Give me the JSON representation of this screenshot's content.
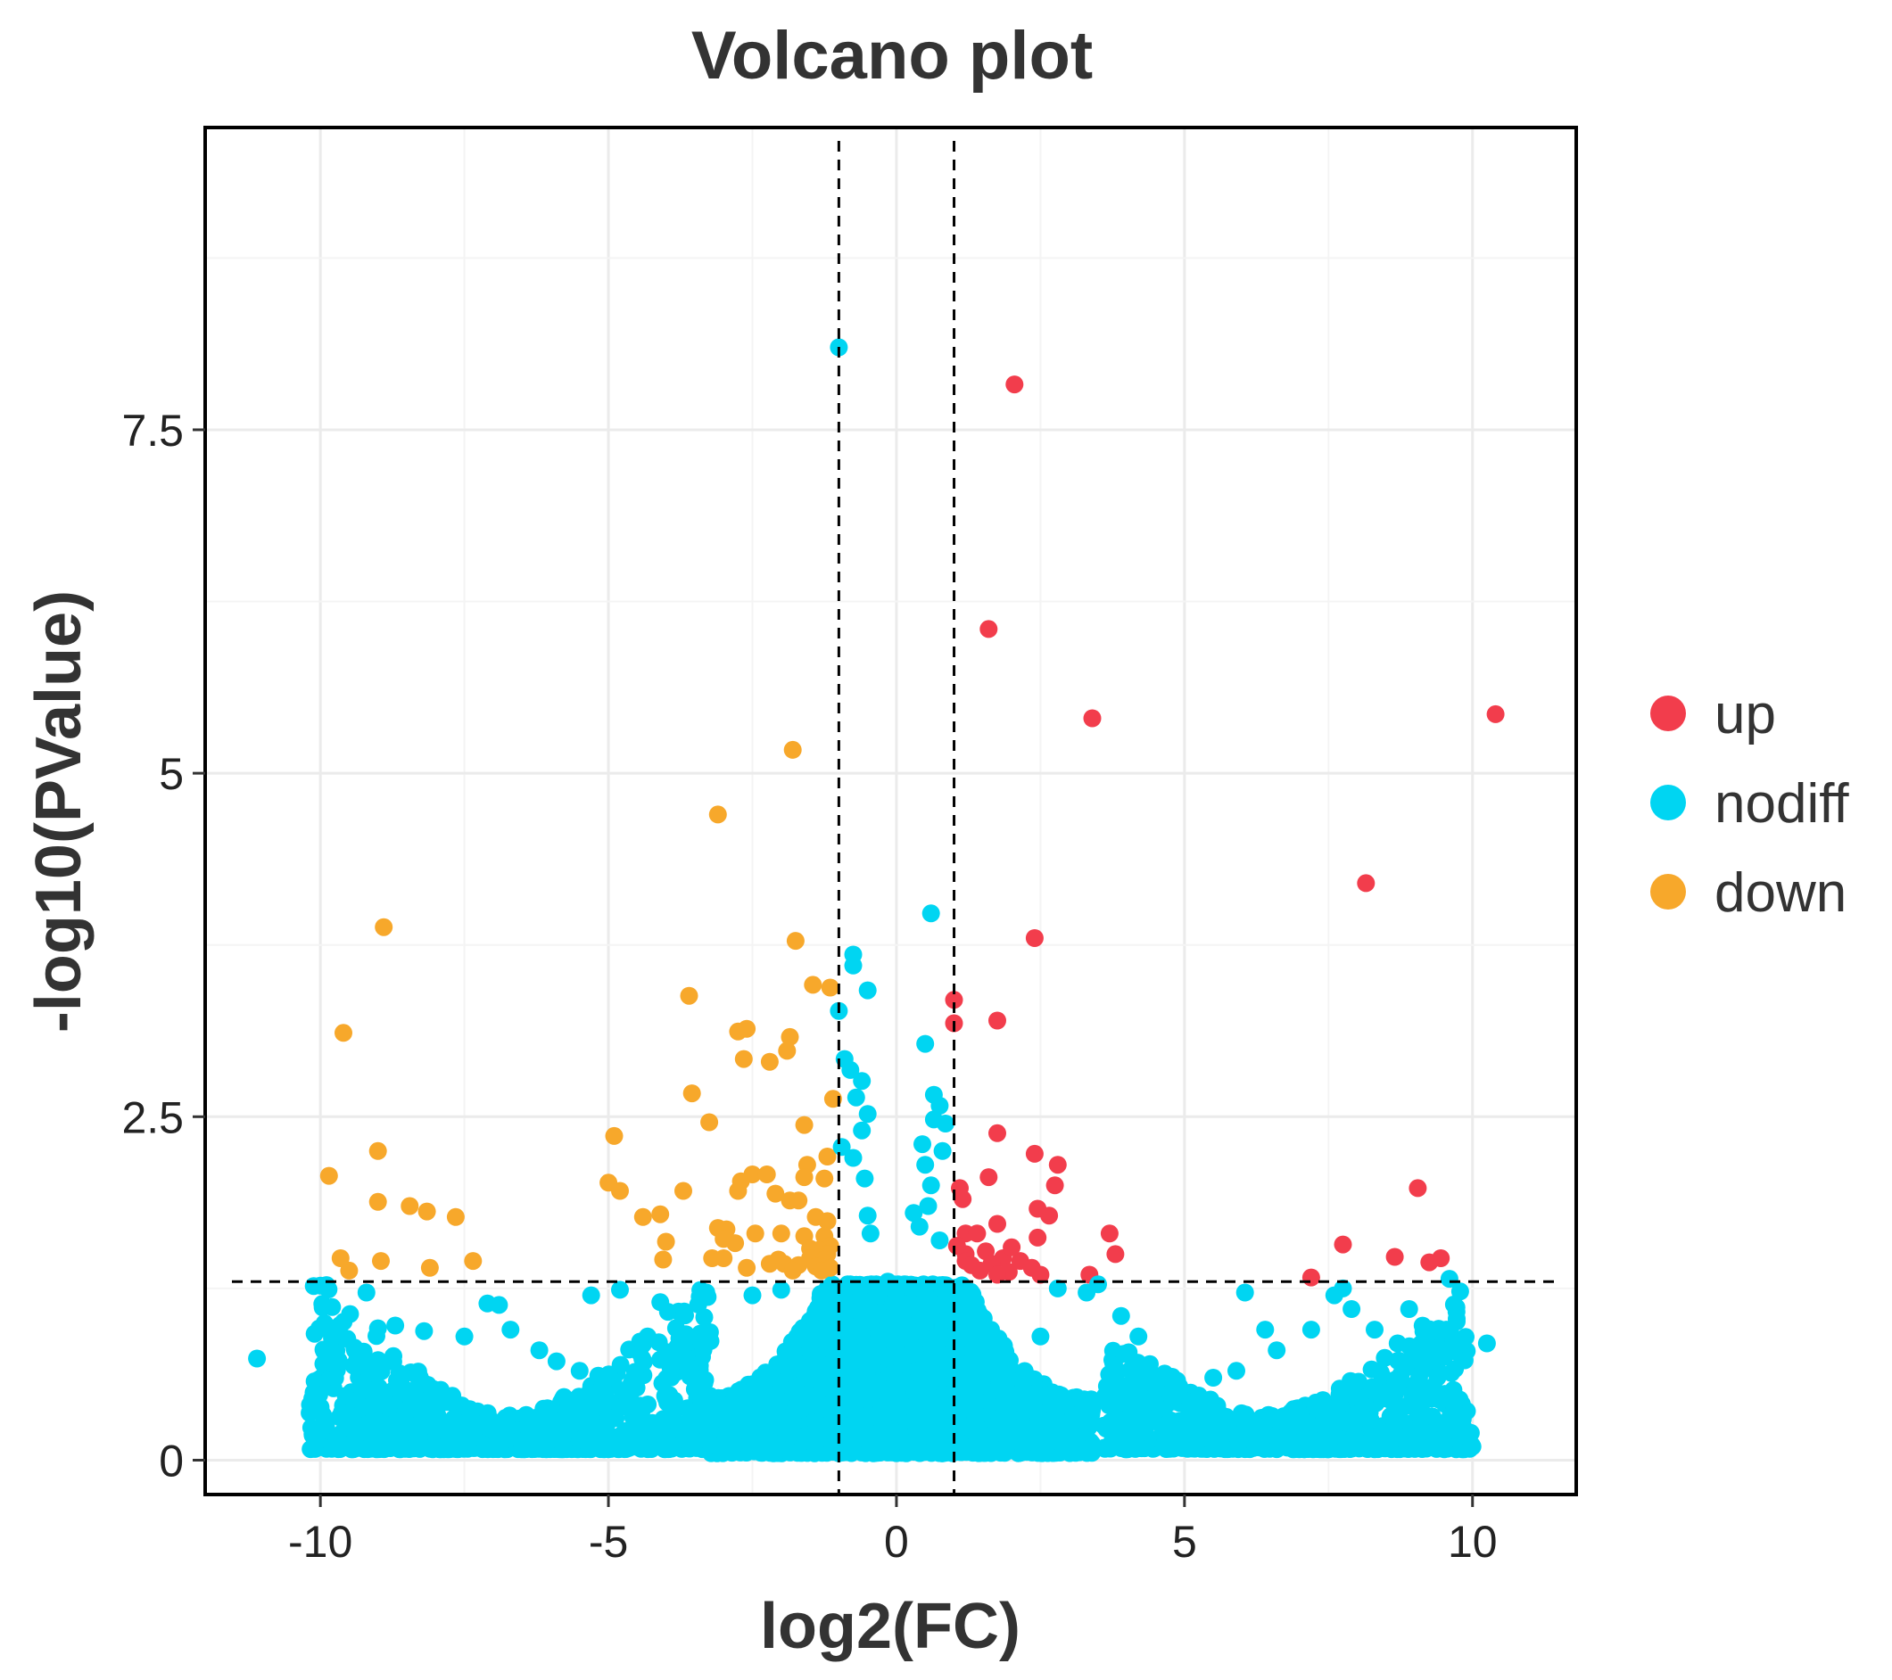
{
  "chart_data": {
    "type": "scatter",
    "title": "Volcano plot",
    "xlabel": "log2(FC)",
    "ylabel": "-log10(PValue)",
    "xlim": [
      -12.0,
      11.8
    ],
    "ylim": [
      -0.25,
      9.7
    ],
    "x_ticks": [
      {
        "value": -10,
        "label": "-10"
      },
      {
        "value": -5,
        "label": "-5"
      },
      {
        "value": 0,
        "label": "0"
      },
      {
        "value": 5,
        "label": "5"
      },
      {
        "value": 10,
        "label": "10"
      }
    ],
    "y_ticks": [
      {
        "value": 0,
        "label": "0"
      },
      {
        "value": 2.5,
        "label": "2.5"
      },
      {
        "value": 5,
        "label": "5"
      },
      {
        "value": 7.5,
        "label": "7.5"
      }
    ],
    "grid": true,
    "thresholds": {
      "log2fc": [
        -1,
        1
      ],
      "neg_log10_p": 1.3
    },
    "legend": {
      "position": "right",
      "entries": [
        {
          "key": "up",
          "label": "up",
          "color": "#f23d4c"
        },
        {
          "key": "nodiff",
          "label": "nodiff",
          "color": "#00d5f2"
        },
        {
          "key": "down",
          "label": "down",
          "color": "#f7a82b"
        }
      ]
    },
    "series": [
      {
        "name": "up",
        "color": "#f23d4c",
        "points": [
          [
            2.05,
            7.83
          ],
          [
            1.6,
            6.05
          ],
          [
            3.4,
            5.4
          ],
          [
            10.4,
            5.43
          ],
          [
            8.15,
            4.2
          ],
          [
            2.4,
            3.8
          ],
          [
            1.75,
            3.2
          ],
          [
            1.0,
            3.35
          ],
          [
            1.0,
            3.18
          ],
          [
            1.75,
            2.38
          ],
          [
            2.4,
            2.23
          ],
          [
            2.8,
            2.15
          ],
          [
            1.6,
            2.06
          ],
          [
            2.75,
            2.0
          ],
          [
            1.1,
            1.98
          ],
          [
            1.15,
            1.9
          ],
          [
            2.45,
            1.83
          ],
          [
            2.65,
            1.78
          ],
          [
            1.75,
            1.72
          ],
          [
            1.2,
            1.65
          ],
          [
            1.4,
            1.65
          ],
          [
            3.7,
            1.65
          ],
          [
            2.45,
            1.62
          ],
          [
            1.55,
            1.52
          ],
          [
            1.2,
            1.5
          ],
          [
            3.8,
            1.5
          ],
          [
            1.85,
            1.47
          ],
          [
            1.2,
            1.45
          ],
          [
            2.15,
            1.45
          ],
          [
            1.65,
            1.43
          ],
          [
            2.35,
            1.4
          ],
          [
            1.45,
            1.38
          ],
          [
            1.95,
            1.37
          ],
          [
            1.75,
            1.35
          ],
          [
            3.35,
            1.35
          ],
          [
            2.5,
            1.35
          ],
          [
            9.05,
            1.98
          ],
          [
            7.75,
            1.57
          ],
          [
            8.65,
            1.48
          ],
          [
            9.45,
            1.47
          ],
          [
            9.25,
            1.44
          ],
          [
            7.2,
            1.33
          ],
          [
            1.05,
            1.56
          ],
          [
            1.3,
            1.42
          ],
          [
            2.0,
            1.55
          ]
        ]
      },
      {
        "name": "down",
        "color": "#f7a82b",
        "points": [
          [
            -1.8,
            5.17
          ],
          [
            -3.1,
            4.7
          ],
          [
            -8.9,
            3.88
          ],
          [
            -1.75,
            3.78
          ],
          [
            -1.45,
            3.46
          ],
          [
            -1.15,
            3.44
          ],
          [
            -3.6,
            3.38
          ],
          [
            -9.6,
            3.11
          ],
          [
            -2.6,
            3.14
          ],
          [
            -2.75,
            3.12
          ],
          [
            -1.85,
            3.08
          ],
          [
            -1.9,
            2.98
          ],
          [
            -2.65,
            2.92
          ],
          [
            -2.2,
            2.9
          ],
          [
            -3.55,
            2.67
          ],
          [
            -1.1,
            2.63
          ],
          [
            -3.25,
            2.46
          ],
          [
            -1.6,
            2.44
          ],
          [
            -4.9,
            2.36
          ],
          [
            -9.0,
            2.25
          ],
          [
            -1.2,
            2.21
          ],
          [
            -1.55,
            2.15
          ],
          [
            -2.5,
            2.08
          ],
          [
            -2.25,
            2.08
          ],
          [
            -9.85,
            2.07
          ],
          [
            -1.6,
            2.06
          ],
          [
            -1.25,
            2.05
          ],
          [
            -5.0,
            2.02
          ],
          [
            -2.7,
            2.03
          ],
          [
            -4.8,
            1.96
          ],
          [
            -2.75,
            1.96
          ],
          [
            -3.7,
            1.96
          ],
          [
            -2.1,
            1.94
          ],
          [
            -9.0,
            1.88
          ],
          [
            -1.85,
            1.89
          ],
          [
            -1.7,
            1.89
          ],
          [
            -8.45,
            1.85
          ],
          [
            -8.15,
            1.81
          ],
          [
            -4.1,
            1.79
          ],
          [
            -7.65,
            1.77
          ],
          [
            -4.4,
            1.77
          ],
          [
            -1.4,
            1.77
          ],
          [
            -1.2,
            1.74
          ],
          [
            -3.1,
            1.69
          ],
          [
            -2.95,
            1.68
          ],
          [
            -2.45,
            1.65
          ],
          [
            -2.0,
            1.65
          ],
          [
            -1.6,
            1.63
          ],
          [
            -1.25,
            1.63
          ],
          [
            -3.0,
            1.61
          ],
          [
            -4.0,
            1.59
          ],
          [
            -2.8,
            1.58
          ],
          [
            -1.15,
            1.56
          ],
          [
            -1.5,
            1.54
          ],
          [
            -1.35,
            1.53
          ],
          [
            -1.2,
            1.5
          ],
          [
            -9.65,
            1.47
          ],
          [
            -3.0,
            1.47
          ],
          [
            -3.2,
            1.47
          ],
          [
            -2.05,
            1.46
          ],
          [
            -4.05,
            1.46
          ],
          [
            -1.5,
            1.47
          ],
          [
            -1.25,
            1.46
          ],
          [
            -8.95,
            1.45
          ],
          [
            -7.35,
            1.45
          ],
          [
            -2.2,
            1.43
          ],
          [
            -1.95,
            1.43
          ],
          [
            -1.7,
            1.42
          ],
          [
            -1.4,
            1.41
          ],
          [
            -9.5,
            1.38
          ],
          [
            -8.1,
            1.4
          ],
          [
            -1.15,
            1.4
          ],
          [
            -1.8,
            1.38
          ],
          [
            -1.3,
            1.38
          ],
          [
            -2.6,
            1.4
          ]
        ]
      },
      {
        "name": "nodiff",
        "color": "#00d5f2",
        "points": [
          [
            -1.0,
            8.1
          ],
          [
            0.6,
            3.98
          ],
          [
            -0.75,
            3.68
          ],
          [
            -0.75,
            3.6
          ],
          [
            -0.5,
            3.42
          ],
          [
            -1.0,
            3.27
          ],
          [
            0.5,
            3.03
          ],
          [
            -0.9,
            2.92
          ],
          [
            -0.8,
            2.84
          ],
          [
            -0.6,
            2.76
          ],
          [
            -0.7,
            2.64
          ],
          [
            0.65,
            2.66
          ],
          [
            0.75,
            2.58
          ],
          [
            -0.5,
            2.52
          ],
          [
            0.65,
            2.48
          ],
          [
            0.85,
            2.45
          ],
          [
            -0.6,
            2.4
          ],
          [
            0.45,
            2.3
          ],
          [
            -0.95,
            2.28
          ],
          [
            0.8,
            2.25
          ],
          [
            -0.75,
            2.2
          ],
          [
            0.5,
            2.15
          ],
          [
            -0.55,
            2.05
          ],
          [
            0.6,
            2.0
          ],
          [
            0.55,
            1.85
          ],
          [
            0.3,
            1.8
          ],
          [
            -0.5,
            1.78
          ],
          [
            0.4,
            1.7
          ],
          [
            -0.45,
            1.65
          ],
          [
            0.75,
            1.6
          ],
          [
            -10.0,
            1.27
          ],
          [
            -9.2,
            1.22
          ],
          [
            -7.1,
            1.14
          ],
          [
            -6.9,
            1.13
          ],
          [
            -5.3,
            1.2
          ],
          [
            -4.8,
            1.24
          ],
          [
            -4.1,
            1.15
          ],
          [
            -3.3,
            1.22
          ],
          [
            -2.5,
            1.2
          ],
          [
            -2.0,
            1.24
          ],
          [
            -11.1,
            0.74
          ],
          [
            -10.1,
            0.92
          ],
          [
            -9.8,
            0.89
          ],
          [
            -9.4,
            0.8
          ],
          [
            -9.0,
            0.96
          ],
          [
            -8.7,
            0.98
          ],
          [
            -8.2,
            0.94
          ],
          [
            -7.5,
            0.9
          ],
          [
            -6.7,
            0.95
          ],
          [
            -6.2,
            0.8
          ],
          [
            -5.9,
            0.72
          ],
          [
            -5.5,
            0.65
          ],
          [
            -5.1,
            0.55
          ],
          [
            -4.5,
            0.3
          ],
          [
            -4.0,
            0.45
          ],
          [
            -3.6,
            0.25
          ],
          [
            -3.3,
            0.15
          ],
          [
            2.8,
            1.25
          ],
          [
            3.3,
            1.22
          ],
          [
            3.5,
            1.28
          ],
          [
            3.9,
            1.05
          ],
          [
            4.2,
            0.9
          ],
          [
            4.6,
            0.6
          ],
          [
            4.9,
            0.5
          ],
          [
            5.5,
            0.6
          ],
          [
            5.9,
            0.65
          ],
          [
            6.05,
            1.22
          ],
          [
            6.4,
            0.95
          ],
          [
            6.6,
            0.8
          ],
          [
            7.2,
            0.95
          ],
          [
            7.6,
            1.2
          ],
          [
            7.75,
            1.25
          ],
          [
            7.9,
            1.1
          ],
          [
            8.3,
            0.95
          ],
          [
            8.7,
            0.85
          ],
          [
            8.9,
            1.1
          ],
          [
            9.2,
            0.85
          ],
          [
            9.55,
            0.95
          ],
          [
            9.6,
            1.32
          ],
          [
            10.25,
            0.85
          ],
          [
            9.0,
            0.55
          ],
          [
            8.5,
            0.45
          ],
          [
            8.1,
            0.4
          ],
          [
            7.5,
            0.3
          ],
          [
            6.8,
            0.2
          ],
          [
            -0.3,
            0.9
          ],
          [
            0.2,
            1.1
          ],
          [
            -0.15,
            1.3
          ],
          [
            0.1,
            0.7
          ],
          [
            -0.5,
            0.5
          ],
          [
            0.4,
            0.45
          ],
          [
            1.5,
            0.7
          ],
          [
            -1.5,
            0.8
          ],
          [
            2.2,
            0.55
          ],
          [
            -2.2,
            0.6
          ],
          [
            1.2,
            1.2
          ],
          [
            -1.2,
            1.25
          ],
          [
            0.9,
            1.05
          ],
          [
            -0.9,
            1.05
          ],
          [
            2.5,
            0.9
          ]
        ]
      }
    ],
    "nodiff_density": [
      {
        "x": [
          -10.2,
          -3.2
        ],
        "shape": "U",
        "xc": -6.7,
        "ymin": 0.08,
        "ymax": 1.2,
        "n": 900
      },
      {
        "x": [
          3.6,
          10.0
        ],
        "shape": "U",
        "xc": 6.4,
        "ymin": 0.08,
        "ymax": 1.1,
        "n": 750
      },
      {
        "x": [
          -3.4,
          3.4
        ],
        "shape": "peak",
        "xc": 0.0,
        "ymin": 0.05,
        "ymax": 2.3,
        "n": 3200
      }
    ]
  }
}
